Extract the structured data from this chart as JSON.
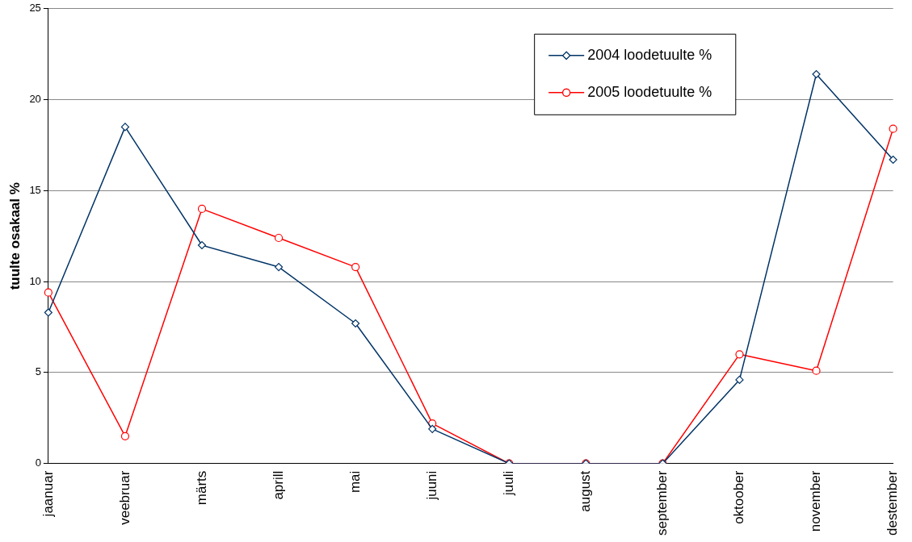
{
  "chart_data": {
    "type": "line",
    "ylabel": "tuulte osakaal %",
    "categories": [
      "jaanuar",
      "veebruar",
      "märts",
      "aprill",
      "mai",
      "juuni",
      "juuli",
      "august",
      "september",
      "oktoober",
      "november",
      "destember"
    ],
    "series": [
      {
        "name": "2004 loodetuulte %",
        "color": "#003366",
        "marker": "diamond",
        "values": [
          8.3,
          18.5,
          12.0,
          10.8,
          7.7,
          1.9,
          0,
          0,
          0,
          4.6,
          21.4,
          16.7
        ]
      },
      {
        "name": "2005 loodetuulte %",
        "color": "#ff0000",
        "marker": "circle",
        "values": [
          9.4,
          1.5,
          14.0,
          12.4,
          10.8,
          2.2,
          0,
          0,
          0,
          6.0,
          5.1,
          18.4
        ]
      }
    ],
    "ylim": [
      0,
      25
    ],
    "yticks": [
      0,
      5,
      10,
      15,
      20,
      25
    ],
    "grid": "y",
    "legend": "top right",
    "line_style": "solid"
  }
}
